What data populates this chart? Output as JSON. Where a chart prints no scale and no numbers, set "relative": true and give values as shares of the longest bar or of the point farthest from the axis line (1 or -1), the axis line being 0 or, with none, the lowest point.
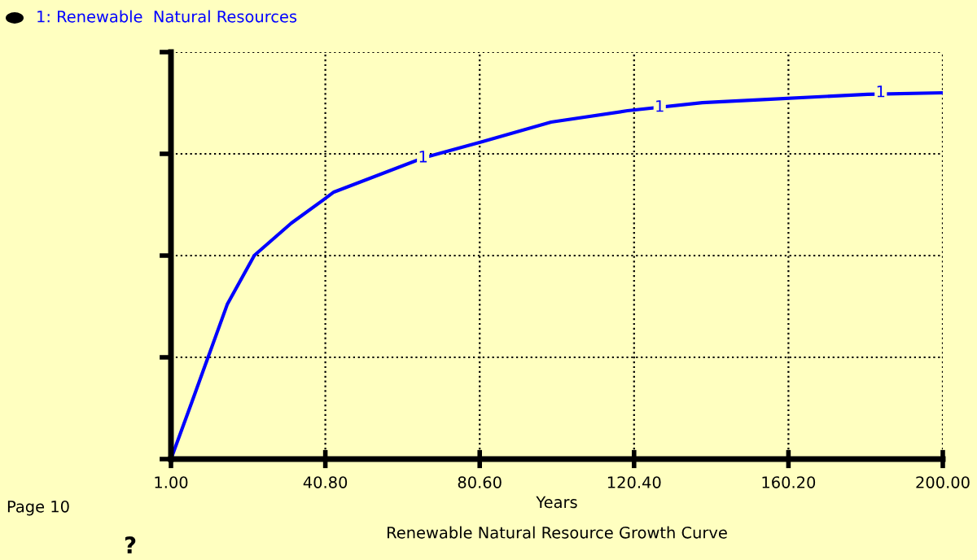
{
  "chart_data": {
    "type": "line",
    "title": "Renewable Natural Resource Growth Curve",
    "xlabel": "Years",
    "relative": true,
    "x": [
      1,
      6.4,
      10.5,
      15.5,
      22.5,
      32,
      40.2,
      43,
      66,
      81.5,
      99,
      118.7,
      138,
      154.6,
      180.6,
      200
    ],
    "series": [
      {
        "name": "1: Renewable  Natural Resources",
        "color": "#0000ff",
        "values": [
          0,
          0.156,
          0.276,
          0.422,
          0.556,
          0.644,
          0.707,
          0.729,
          0.822,
          0.867,
          0.92,
          0.951,
          0.973,
          0.982,
          0.996,
          1
        ]
      }
    ],
    "xlim": [
      1,
      200
    ],
    "xticks": [
      {
        "value": 1,
        "label": "1.00"
      },
      {
        "value": 40.8,
        "label": "40.80"
      },
      {
        "value": 80.6,
        "label": "80.60"
      },
      {
        "value": 120.4,
        "label": "120.40"
      },
      {
        "value": 160.2,
        "label": "160.20"
      },
      {
        "value": 200,
        "label": "200.00"
      }
    ],
    "grid": true,
    "legend": "top left",
    "line_style": "solid",
    "marker": "none",
    "annotations": [
      {
        "text": "1",
        "x": 66,
        "y": 0.822
      },
      {
        "text": "1",
        "x": 127,
        "y": 0.96
      },
      {
        "text": "1",
        "x": 184,
        "y": 1
      },
      "Page 10",
      "?"
    ]
  }
}
